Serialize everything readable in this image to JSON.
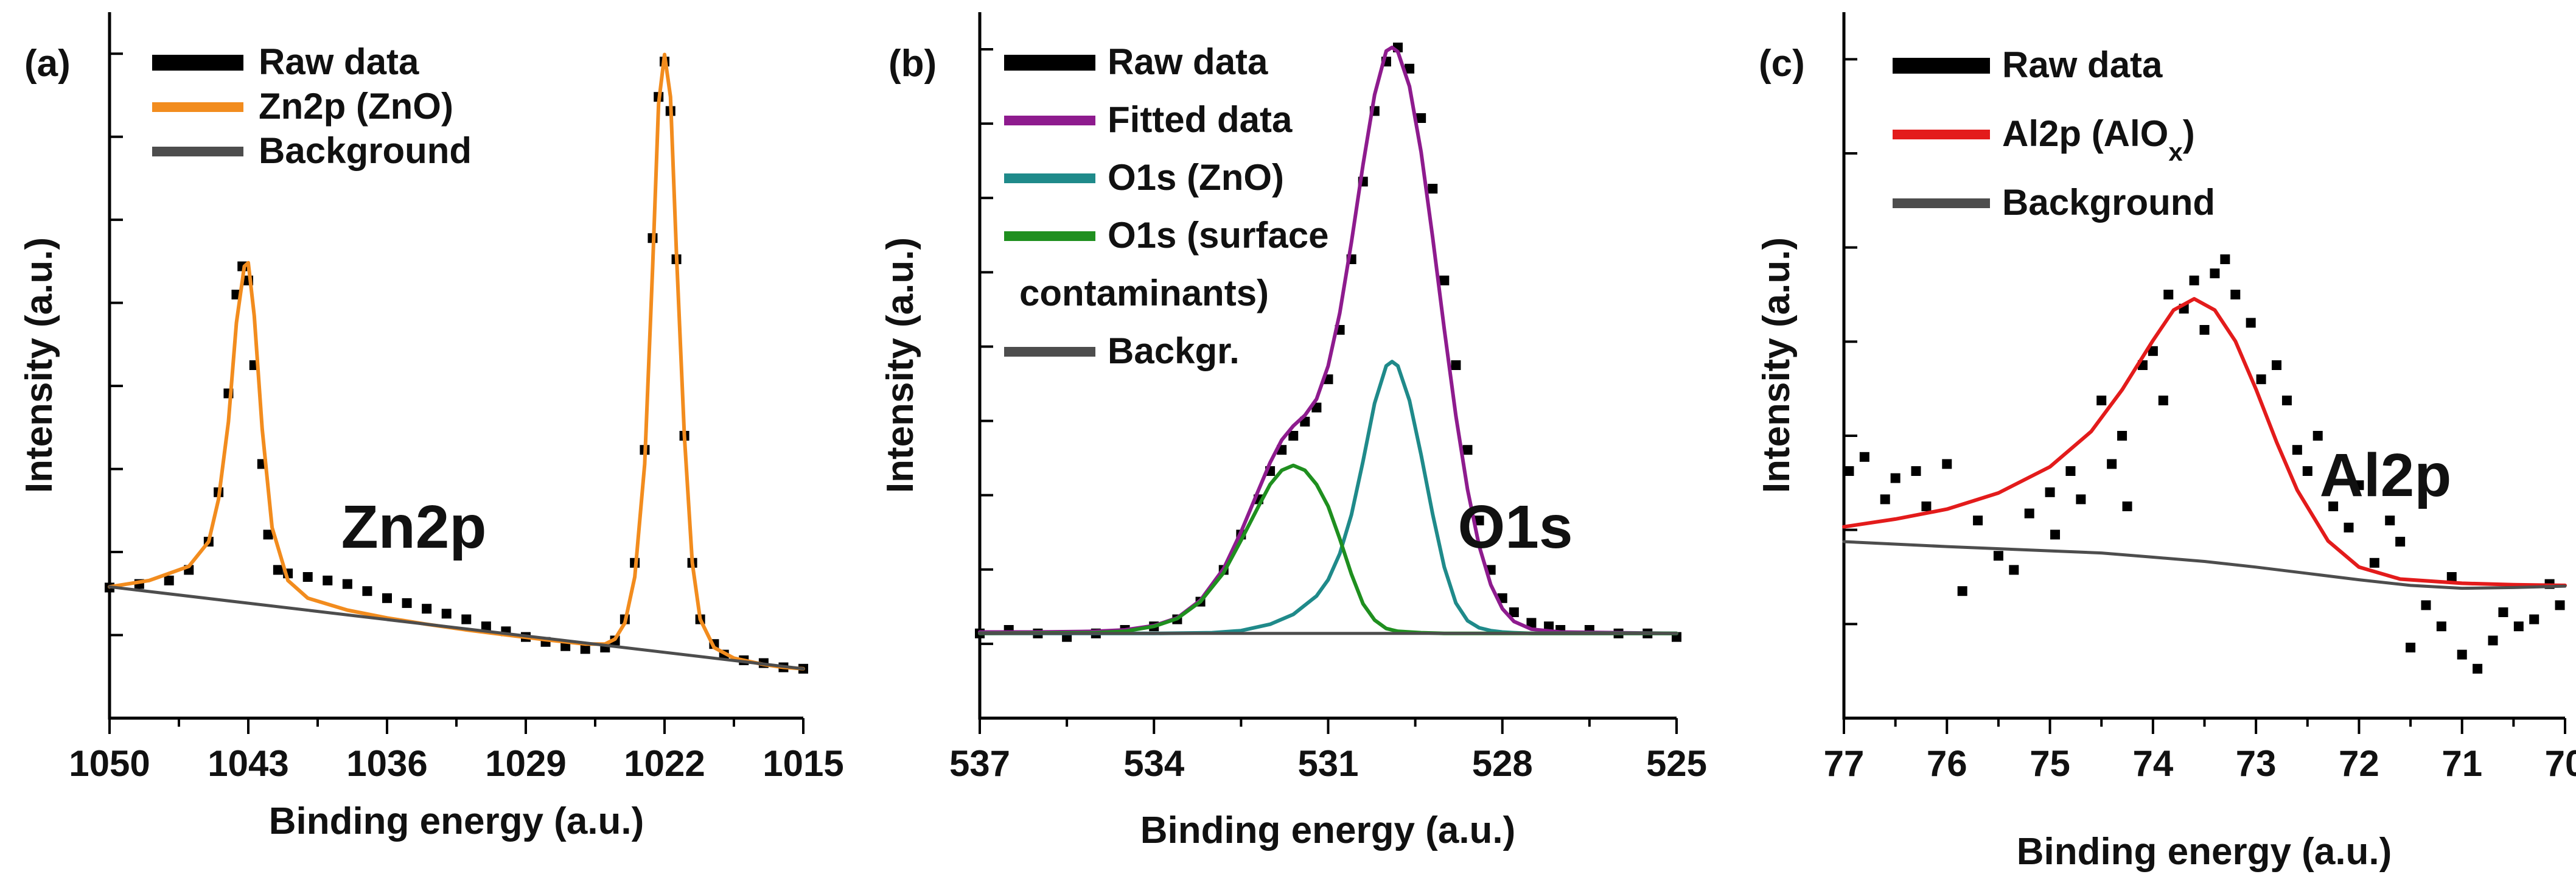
{
  "figure": {
    "description_panels": [
      "a",
      "b",
      "c"
    ]
  },
  "chart_data": [
    {
      "type": "line",
      "panel": "(a)",
      "xlabel": "Binding energy (a.u.)",
      "ylabel": "Intensity (a.u.)",
      "xlim": [
        1050,
        1015
      ],
      "x_reversed": true,
      "xticks": [
        1050,
        1043,
        1036,
        1029,
        1022,
        1015
      ],
      "ylim": [
        0,
        100
      ],
      "yticks_count": 8,
      "annotation": "Zn2p",
      "legend_position": "top-left",
      "legend": [
        {
          "label": "Raw data",
          "color": "#000000",
          "style": "points"
        },
        {
          "label": "Zn2p (ZnO)",
          "color": "#f28c1e",
          "style": "line"
        },
        {
          "label": "Background",
          "color": "#4d4d4d",
          "style": "line"
        }
      ],
      "series": [
        {
          "name": "Raw data",
          "kind": "points",
          "color": "#000000",
          "x": [
            1050,
            1048.5,
            1047,
            1046,
            1045,
            1044.5,
            1044,
            1043.6,
            1043.3,
            1043,
            1042.7,
            1042.3,
            1042,
            1041.5,
            1041,
            1040,
            1039,
            1038,
            1037,
            1036,
            1035,
            1034,
            1033,
            1032,
            1031,
            1030,
            1029,
            1028,
            1027,
            1026,
            1025,
            1024.5,
            1024,
            1023.5,
            1023,
            1022.6,
            1022.3,
            1022,
            1021.7,
            1021.4,
            1021,
            1020.6,
            1020.2,
            1019.5,
            1019,
            1018,
            1017,
            1016,
            1015
          ],
          "y": [
            18.5,
            19,
            19.5,
            21,
            25,
            32,
            46,
            60,
            64,
            62,
            50,
            36,
            26,
            21,
            20.5,
            20,
            19.5,
            19,
            18,
            17,
            16.3,
            15.5,
            14.8,
            14,
            13,
            12.3,
            11.5,
            10.8,
            10.2,
            9.8,
            10,
            11,
            14,
            22,
            38,
            68,
            88,
            93,
            86,
            65,
            40,
            22,
            14,
            10.5,
            9,
            8.2,
            7.8,
            7.2,
            7
          ]
        },
        {
          "name": "Zn2p (ZnO)",
          "kind": "line",
          "color": "#f28c1e",
          "x": [
            1050,
            1048,
            1046,
            1045,
            1044.5,
            1044,
            1043.6,
            1043.2,
            1043,
            1042.7,
            1042.3,
            1041.8,
            1041,
            1040,
            1038,
            1036,
            1034,
            1032,
            1030,
            1028,
            1026,
            1025,
            1024.5,
            1024,
            1023.5,
            1023,
            1022.6,
            1022.3,
            1022,
            1021.7,
            1021.4,
            1021,
            1020.6,
            1020.2,
            1019.5,
            1018.5,
            1017,
            1016,
            1015
          ],
          "y": [
            18.6,
            19.5,
            21.5,
            25,
            31,
            42,
            56,
            64,
            64.5,
            57,
            41,
            27,
            19.5,
            17,
            15.3,
            14.2,
            13.3,
            12.5,
            11.8,
            11.1,
            10.5,
            10.5,
            11.2,
            13.5,
            20,
            36,
            64,
            87,
            94,
            88,
            66,
            40,
            22,
            14,
            10,
            8.5,
            7.6,
            7.2,
            7
          ]
        },
        {
          "name": "Background",
          "kind": "line",
          "color": "#4d4d4d",
          "x": [
            1050,
            1015
          ],
          "y": [
            18.6,
            7
          ]
        }
      ]
    },
    {
      "type": "line",
      "panel": "(b)",
      "xlabel": "Binding energy (a.u.)",
      "ylabel": "Intensity (a.u.)",
      "xlim": [
        537,
        525
      ],
      "x_reversed": true,
      "xticks": [
        537,
        534,
        531,
        528,
        525
      ],
      "ylim": [
        0,
        100
      ],
      "yticks_count": 9,
      "annotation": "O1s",
      "legend_position": "top-left",
      "legend": [
        {
          "label": "Raw data",
          "color": "#000000",
          "style": "points"
        },
        {
          "label": "Fitted data",
          "color": "#8e1b8e",
          "style": "line"
        },
        {
          "label": "O1s (ZnO)",
          "color": "#1f8a8a",
          "style": "line"
        },
        {
          "label": "O1s (surface",
          "label2": "contaminants)",
          "color": "#1f8f1f",
          "style": "line"
        },
        {
          "label": "Backgr.",
          "color": "#4d4d4d",
          "style": "line"
        }
      ],
      "series": [
        {
          "name": "Raw data",
          "kind": "points",
          "color": "#000000",
          "x": [
            537,
            536.5,
            536,
            535.5,
            535,
            534.5,
            534,
            533.6,
            533.2,
            532.8,
            532.5,
            532.2,
            532,
            531.8,
            531.6,
            531.4,
            531.2,
            531,
            530.8,
            530.6,
            530.4,
            530.2,
            530,
            529.8,
            529.6,
            529.4,
            529.2,
            529,
            528.8,
            528.6,
            528.4,
            528.2,
            528,
            527.8,
            527.5,
            527.2,
            527,
            526.5,
            526,
            525.5,
            525
          ],
          "y": [
            12,
            12.5,
            12,
            11.5,
            12,
            12.5,
            13,
            14,
            16.5,
            21,
            26,
            31,
            35,
            38,
            40,
            42,
            44,
            48,
            55,
            65,
            76,
            86,
            93,
            95,
            92,
            85,
            75,
            62,
            50,
            38,
            28,
            21,
            17,
            15,
            13.5,
            13,
            12.5,
            12.5,
            12,
            12,
            11.5
          ]
        },
        {
          "name": "Fitted data",
          "kind": "line",
          "color": "#8e1b8e",
          "x": [
            537,
            536,
            535,
            534.5,
            534,
            533.6,
            533.2,
            532.8,
            532.5,
            532.2,
            532,
            531.8,
            531.6,
            531.4,
            531.2,
            531,
            530.8,
            530.6,
            530.4,
            530.2,
            530,
            529.9,
            529.8,
            529.6,
            529.4,
            529.2,
            529,
            528.8,
            528.6,
            528.4,
            528.2,
            528,
            527.8,
            527.5,
            527,
            526,
            525
          ],
          "y": [
            12.2,
            12.2,
            12.3,
            12.5,
            13.1,
            14.2,
            16.7,
            21.2,
            26.4,
            32.3,
            36.2,
            39.4,
            41.4,
            42.9,
            45.2,
            49.9,
            57.4,
            67.4,
            78.4,
            88.3,
            94.5,
            95,
            94.4,
            89.5,
            80.2,
            68.1,
            55.1,
            42.8,
            32.4,
            24.4,
            18.9,
            15.5,
            13.7,
            12.6,
            12.2,
            12.1,
            12
          ]
        },
        {
          "name": "O1s (ZnO)",
          "kind": "line",
          "color": "#1f8a8a",
          "x": [
            537,
            534,
            533,
            532.5,
            532,
            531.6,
            531.2,
            531,
            530.8,
            530.6,
            530.4,
            530.2,
            530,
            529.9,
            529.8,
            529.6,
            529.4,
            529.2,
            529,
            528.8,
            528.6,
            528.4,
            528.2,
            528,
            527.8,
            527.5,
            527,
            526,
            525
          ],
          "y": [
            12,
            12,
            12.1,
            12.4,
            13.3,
            14.7,
            17.3,
            19.6,
            23.3,
            28.8,
            36.4,
            44.6,
            49.9,
            50.5,
            49.9,
            45,
            37.3,
            28.9,
            21.4,
            16.3,
            13.8,
            12.8,
            12.4,
            12.2,
            12.1,
            12,
            12,
            12,
            12
          ]
        },
        {
          "name": "O1s (surface contaminants)",
          "kind": "line",
          "color": "#1f8f1f",
          "x": [
            537,
            535,
            534.5,
            534,
            533.6,
            533.2,
            532.8,
            532.5,
            532.2,
            532,
            531.8,
            531.6,
            531.4,
            531.2,
            531,
            530.8,
            530.6,
            530.4,
            530.2,
            530,
            529.8,
            529.4,
            529,
            528.5,
            528,
            527,
            525
          ],
          "y": [
            12,
            12.1,
            12.3,
            13,
            14.1,
            16.5,
            20.6,
            25.2,
            30,
            33.1,
            35.1,
            35.8,
            35.1,
            33.1,
            30,
            25.4,
            20.4,
            16.2,
            13.9,
            12.7,
            12.3,
            12.1,
            12,
            12,
            12,
            12,
            12
          ]
        },
        {
          "name": "Backgr.",
          "kind": "line",
          "color": "#4d4d4d",
          "x": [
            537,
            525
          ],
          "y": [
            12,
            12
          ]
        }
      ]
    },
    {
      "type": "line",
      "panel": "(c)",
      "xlabel": "Binding energy (a.u.)",
      "ylabel": "Intensity (a.u.)",
      "xlim": [
        77,
        70
      ],
      "x_reversed": true,
      "xticks": [
        77,
        76,
        75,
        74,
        73,
        72,
        71,
        70
      ],
      "ylim": [
        0,
        100
      ],
      "yticks_count": 7,
      "annotation": "Al2p",
      "legend_position": "top-left",
      "legend": [
        {
          "label": "Raw data",
          "color": "#000000",
          "style": "points"
        },
        {
          "label": "Al2p (AlO",
          "sub": "x",
          "label_end": ")",
          "color": "#e31b1b",
          "style": "line"
        },
        {
          "label": "Background",
          "color": "#4d4d4d",
          "style": "line"
        }
      ],
      "series": [
        {
          "name": "Raw data",
          "kind": "points",
          "color": "#000000",
          "x": [
            76.95,
            76.8,
            76.6,
            76.5,
            76.3,
            76.2,
            76,
            75.85,
            75.7,
            75.5,
            75.35,
            75.2,
            75,
            74.95,
            74.8,
            74.7,
            74.5,
            74.4,
            74.3,
            74.25,
            74.1,
            74,
            73.9,
            73.85,
            73.7,
            73.6,
            73.5,
            73.4,
            73.3,
            73.2,
            73.05,
            72.95,
            72.8,
            72.7,
            72.6,
            72.5,
            72.4,
            72.25,
            72.1,
            72,
            71.85,
            71.7,
            71.6,
            71.5,
            71.35,
            71.2,
            71.1,
            71,
            70.85,
            70.7,
            70.6,
            70.45,
            70.3,
            70.15,
            70.05
          ],
          "y": [
            35,
            37,
            31,
            34,
            35,
            30,
            36,
            18,
            28,
            23,
            21,
            29,
            32,
            26,
            35,
            31,
            45,
            36,
            40,
            30,
            50,
            52,
            45,
            60,
            58,
            62,
            55,
            63,
            65,
            60,
            56,
            48,
            50,
            45,
            38,
            35,
            40,
            30,
            27,
            33,
            22,
            28,
            25,
            10,
            16,
            13,
            20,
            9,
            7,
            11,
            15,
            13,
            14,
            19,
            16
          ]
        },
        {
          "name": "Al2p (AlOx)",
          "kind": "line",
          "color": "#e31b1b",
          "x": [
            77,
            76.5,
            76,
            75.5,
            75,
            74.6,
            74.3,
            74,
            73.8,
            73.6,
            73.4,
            73.2,
            73,
            72.8,
            72.6,
            72.3,
            72,
            71.6,
            71,
            70.5,
            70
          ],
          "y": [
            27.1,
            28.2,
            29.6,
            31.9,
            35.6,
            40.6,
            46.5,
            53.5,
            57.8,
            59.4,
            57.8,
            53.4,
            46.6,
            39.1,
            32.3,
            25.1,
            21.4,
            19.7,
            19.1,
            18.9,
            18.8
          ]
        },
        {
          "name": "Background",
          "kind": "line",
          "color": "#4d4d4d",
          "x": [
            77,
            76,
            75,
            74.5,
            74,
            73.5,
            73,
            72.5,
            72,
            71.5,
            71,
            70.5,
            70
          ],
          "y": [
            25,
            24.3,
            23.7,
            23.4,
            22.8,
            22.2,
            21.4,
            20.5,
            19.6,
            18.8,
            18.4,
            18.5,
            18.7
          ]
        }
      ]
    }
  ]
}
